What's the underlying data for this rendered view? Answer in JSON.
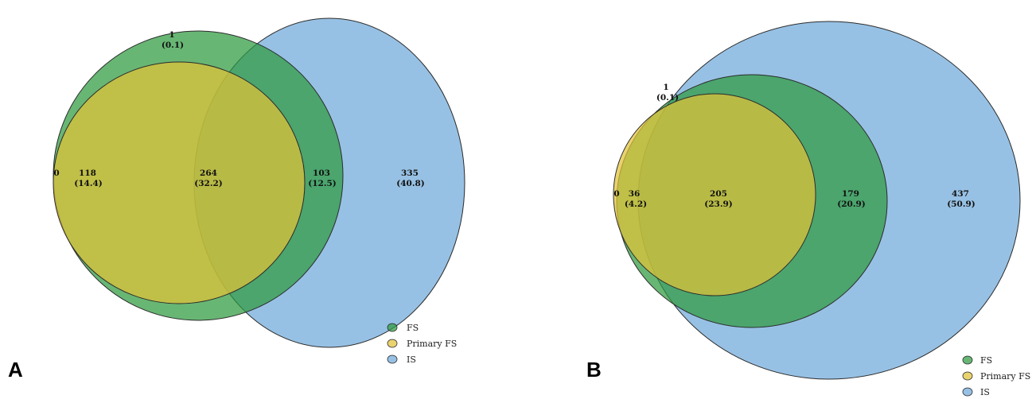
{
  "colors": {
    "fs": "#2e9a3e",
    "primary_fs": "#e2c238",
    "is": "#6fa9da"
  },
  "legend": [
    {
      "key": "fs",
      "label": "FS"
    },
    {
      "key": "primary_fs",
      "label": "Primary FS"
    },
    {
      "key": "is",
      "label": "IS"
    }
  ],
  "panels": [
    {
      "letter": "A",
      "regions": {
        "fs_only": {
          "count": "1",
          "pct": "(0.1)"
        },
        "primary_only": {
          "count": "0"
        },
        "fs_primary": {
          "count": "118",
          "pct": "(14.4)"
        },
        "all_three": {
          "count": "264",
          "pct": "(32.2)"
        },
        "fs_is": {
          "count": "103",
          "pct": "(12.5)"
        },
        "is_only": {
          "count": "335",
          "pct": "(40.8)"
        }
      }
    },
    {
      "letter": "B",
      "regions": {
        "fs_only": {
          "count": "1",
          "pct": "(0.1)"
        },
        "primary_only": {
          "count": "0"
        },
        "fs_primary": {
          "count": "36",
          "pct": "(4.2)"
        },
        "all_three": {
          "count": "205",
          "pct": "(23.9)"
        },
        "fs_is": {
          "count": "179",
          "pct": "(20.9)"
        },
        "is_only": {
          "count": "437",
          "pct": "(50.9)"
        }
      }
    }
  ]
}
